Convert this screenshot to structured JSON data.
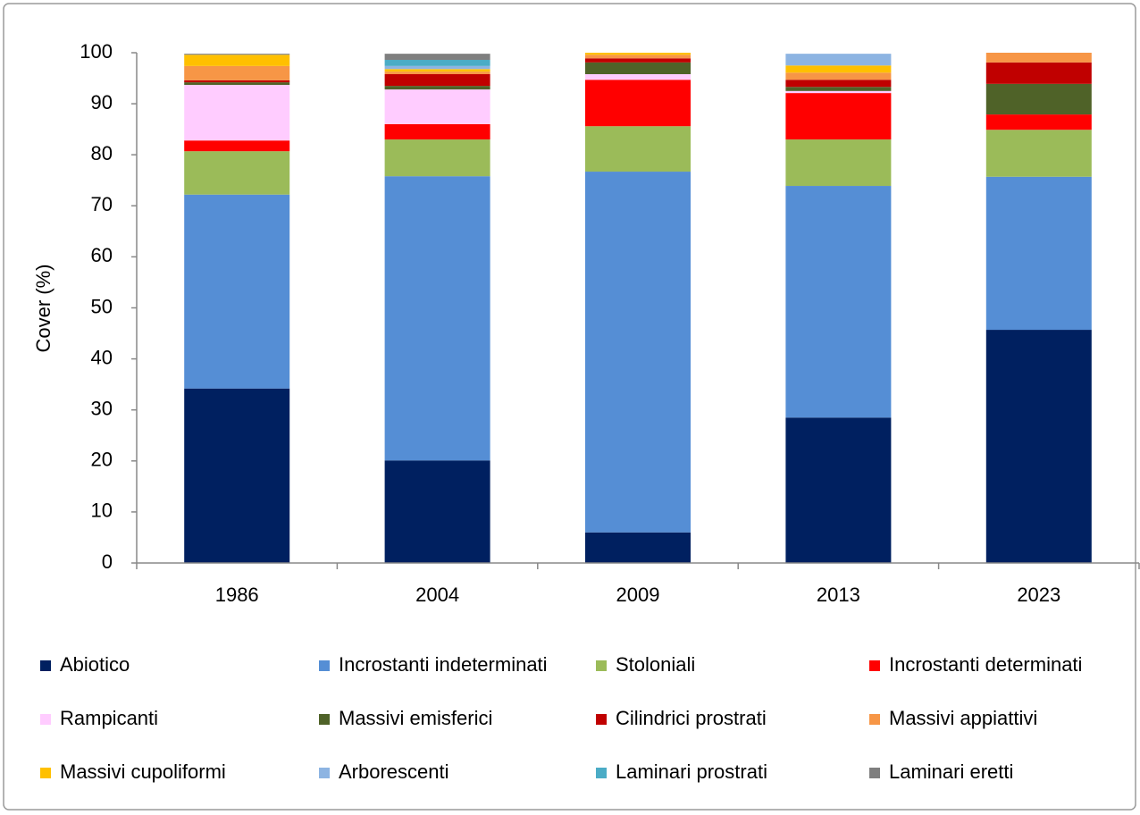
{
  "chart_data": {
    "type": "stacked_bar",
    "y_label": "Cover (%)",
    "categories": [
      "1986",
      "2004",
      "2009",
      "2013",
      "2023"
    ],
    "ylim": [
      0,
      100
    ],
    "yticks": [
      0,
      10,
      20,
      30,
      40,
      50,
      60,
      70,
      80,
      90,
      100
    ],
    "series": [
      {
        "name": "Abiotico",
        "color": "#002060",
        "values": [
          34.2,
          20.1,
          6.0,
          28.5,
          45.7
        ]
      },
      {
        "name": "Incrostanti indeterminati",
        "color": "#558ed5",
        "values": [
          38.0,
          55.7,
          70.7,
          45.4,
          30.0
        ]
      },
      {
        "name": "Stoloniali",
        "color": "#9bbb59",
        "values": [
          8.5,
          7.2,
          8.9,
          9.1,
          9.2
        ]
      },
      {
        "name": "Incrostanti determinati",
        "color": "#ff0000",
        "values": [
          2.1,
          3.0,
          9.1,
          9.1,
          3.0
        ]
      },
      {
        "name": "Rampicanti",
        "color": "#ffccff",
        "values": [
          10.9,
          6.8,
          1.1,
          0.4,
          0
        ]
      },
      {
        "name": "Massivi emisferici",
        "color": "#4f6228",
        "values": [
          0.5,
          0.7,
          2.3,
          0.8,
          6.0
        ]
      },
      {
        "name": "Cilindrici prostrati",
        "color": "#c00000",
        "values": [
          0.4,
          2.3,
          0.8,
          1.4,
          4.2
        ]
      },
      {
        "name": "Massivi appiattivi",
        "color": "#f79646",
        "values": [
          2.8,
          0.5,
          0.7,
          1.4,
          1.9
        ]
      },
      {
        "name": "Massivi cupoliformi",
        "color": "#ffc000",
        "values": [
          2.2,
          0.5,
          0.4,
          1.4,
          0
        ]
      },
      {
        "name": "Arborescenti",
        "color": "#8db4e2",
        "values": [
          0,
          0.6,
          0,
          2.3,
          0
        ]
      },
      {
        "name": "Laminari prostrati",
        "color": "#4bacc6",
        "values": [
          0,
          1.2,
          0,
          0,
          0
        ]
      },
      {
        "name": "Laminari eretti",
        "color": "#7f7f7f",
        "values": [
          0.2,
          1.2,
          0,
          0,
          0
        ]
      }
    ]
  }
}
